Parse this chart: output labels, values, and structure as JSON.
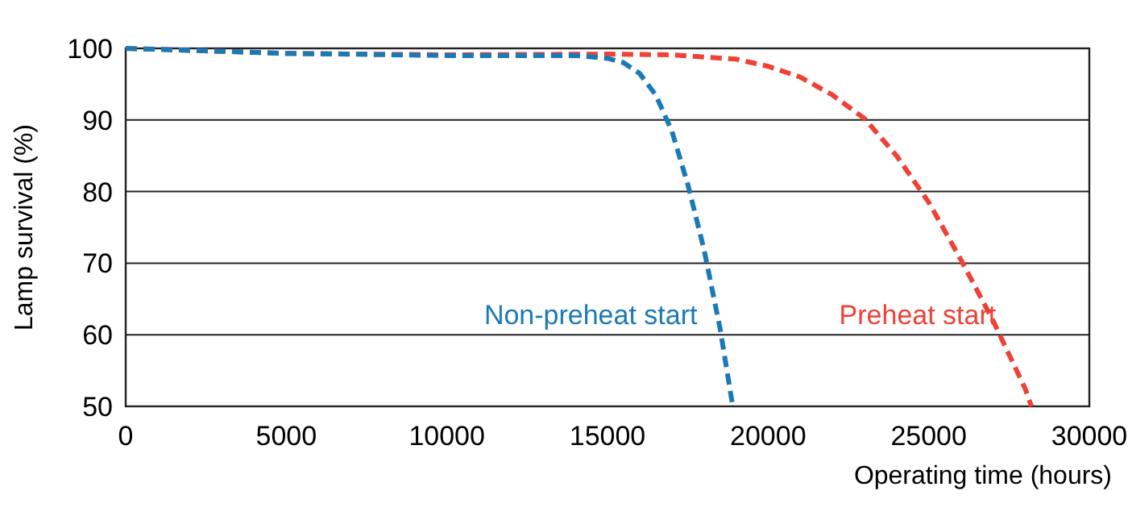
{
  "chart_data": {
    "type": "line",
    "xlabel": "Operating time (hours)",
    "ylabel": "Lamp survival  (%)",
    "xlim": [
      0,
      30000
    ],
    "ylim": [
      50,
      100
    ],
    "xticks": [
      0,
      5000,
      10000,
      15000,
      20000,
      25000,
      30000
    ],
    "yticks": [
      50,
      60,
      70,
      80,
      90,
      100
    ],
    "grid": "y",
    "legend": false,
    "marker": "none",
    "series": [
      {
        "name": "Preheat start",
        "color": "#ef4135",
        "line_style": "dashed",
        "x": [
          0,
          5000,
          10000,
          15000,
          17000,
          19000,
          20000,
          21000,
          22000,
          23000,
          24000,
          25000,
          26000,
          27000,
          28000,
          28200
        ],
        "values": [
          100,
          99.3,
          99.1,
          99.2,
          99.1,
          98.5,
          97.5,
          96,
          93.5,
          90.2,
          85,
          78.5,
          70.5,
          62,
          52.5,
          50
        ]
      },
      {
        "name": "Non-preheat start",
        "color": "#1a7ab5",
        "line_style": "dashed",
        "x": [
          0,
          5000,
          10000,
          14000,
          15000,
          15500,
          16000,
          16500,
          17000,
          17500,
          18000,
          18500,
          18900
        ],
        "values": [
          100,
          99.3,
          99,
          99,
          98.6,
          98,
          96.5,
          93.5,
          88.5,
          81,
          72,
          61,
          50
        ]
      }
    ]
  }
}
